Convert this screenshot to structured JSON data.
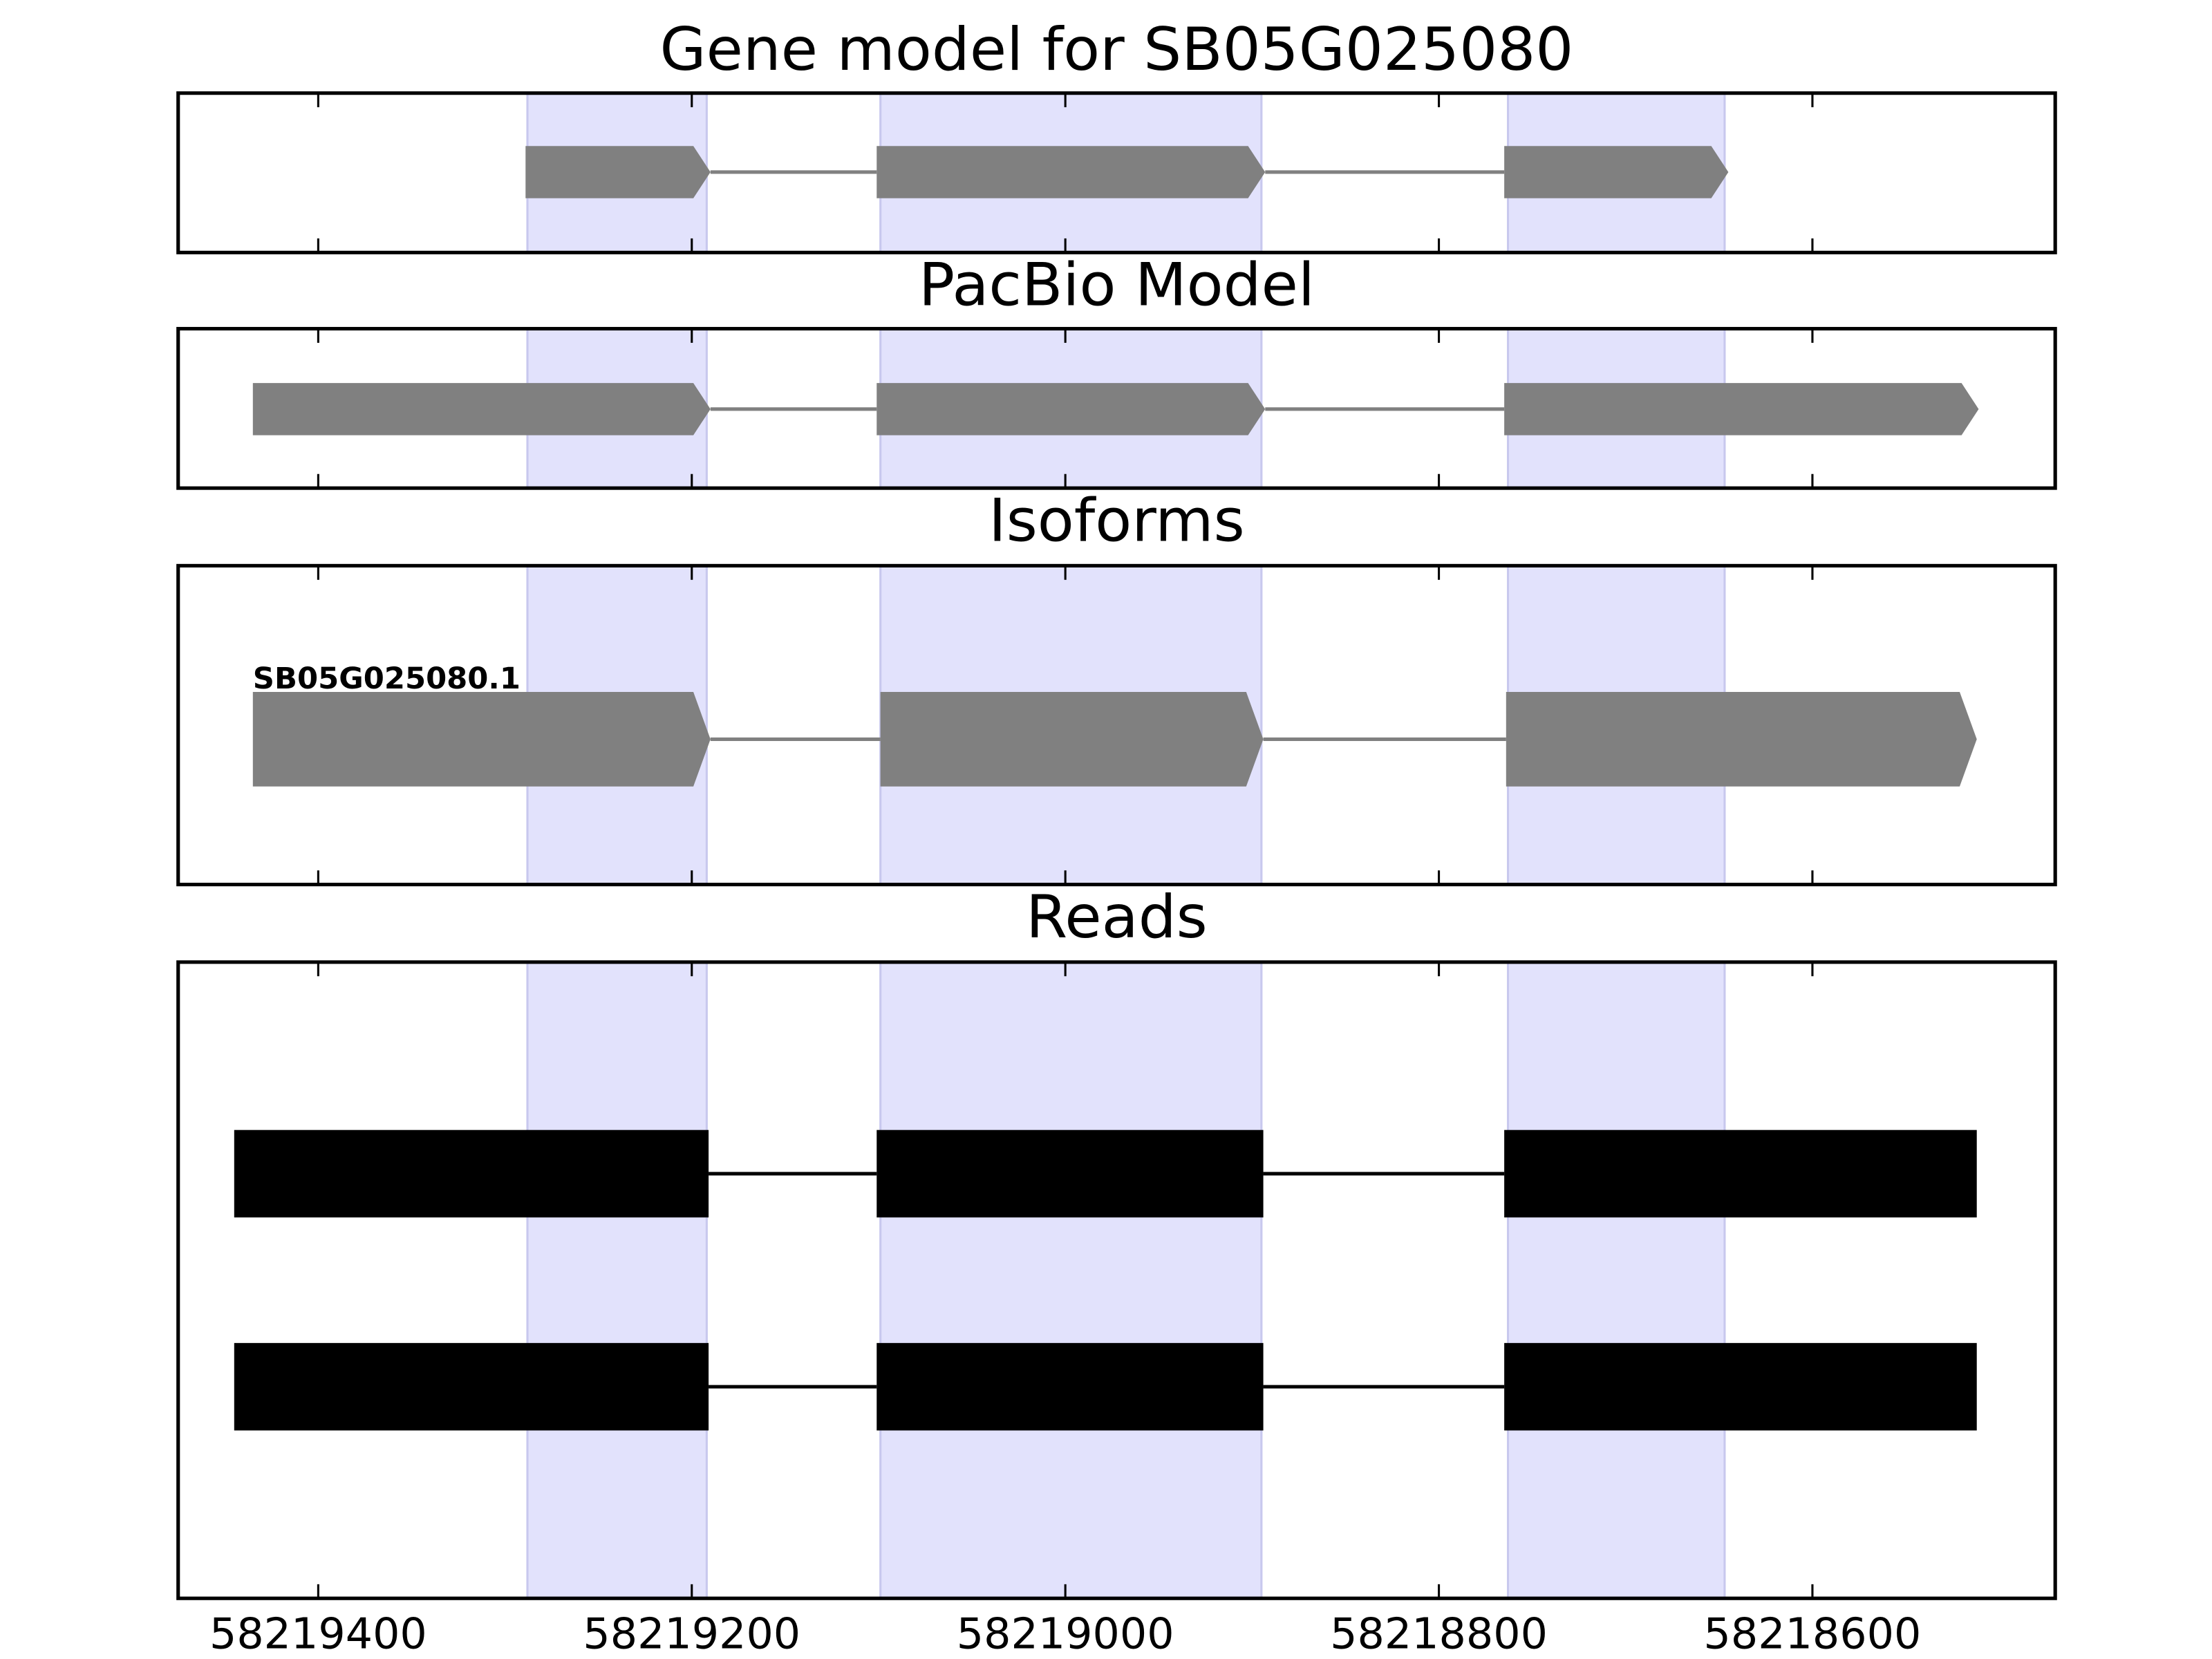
{
  "chart_data": [
    {
      "type": "gene-track",
      "title": "Gene model for SB05G025080",
      "shape": "arrow",
      "color": "#808080",
      "highlight_color": "#e2e2fc",
      "xlim": [
        58219475,
        58218470
      ],
      "xticks": [
        58219400,
        58219200,
        58219000,
        58218800,
        58218600
      ],
      "highlights": [
        [
          58219288,
          58219192
        ],
        [
          58219099,
          58218895
        ],
        [
          58218763,
          58218647
        ]
      ],
      "tracks": [
        {
          "exons": [
            [
              58219289,
              58219190
            ],
            [
              58219101,
              58218893
            ],
            [
              58218765,
              58218645
            ]
          ]
        }
      ]
    },
    {
      "type": "gene-track",
      "title": "PacBio Model",
      "shape": "arrow",
      "color": "#808080",
      "highlight_color": "#e2e2fc",
      "xlim": [
        58219475,
        58218470
      ],
      "xticks": [
        58219400,
        58219200,
        58219000,
        58218800,
        58218600
      ],
      "highlights": [
        [
          58219288,
          58219192
        ],
        [
          58219099,
          58218895
        ],
        [
          58218763,
          58218647
        ]
      ],
      "tracks": [
        {
          "exons": [
            [
              58219435,
              58219190
            ],
            [
              58219101,
              58218893
            ],
            [
              58218765,
              58218511
            ]
          ]
        }
      ]
    },
    {
      "type": "gene-track",
      "title": "Isoforms",
      "shape": "arrow",
      "color": "#808080",
      "highlight_color": "#e2e2fc",
      "xlim": [
        58219475,
        58218470
      ],
      "xticks": [
        58219400,
        58219200,
        58219000,
        58218800,
        58218600
      ],
      "highlights": [
        [
          58219288,
          58219192
        ],
        [
          58219099,
          58218895
        ],
        [
          58218763,
          58218647
        ]
      ],
      "tracks": [
        {
          "name": "SB05G025080.1",
          "exons": [
            [
              58219435,
              58219190
            ],
            [
              58219099,
              58218894
            ],
            [
              58218764,
              58218512
            ]
          ]
        }
      ]
    },
    {
      "type": "gene-track",
      "title": "Reads",
      "shape": "box",
      "color": "#000000",
      "highlight_color": "#e2e2fc",
      "xlim": [
        58219475,
        58218470
      ],
      "xticks": [
        58219400,
        58219200,
        58219000,
        58218800,
        58218600
      ],
      "highlights": [
        [
          58219288,
          58219192
        ],
        [
          58219099,
          58218895
        ],
        [
          58218763,
          58218647
        ]
      ],
      "tracks": [
        {
          "exons": [
            [
              58219445,
              58219191
            ],
            [
              58219101,
              58218894
            ],
            [
              58218765,
              58218512
            ]
          ]
        },
        {
          "exons": [
            [
              58219445,
              58219191
            ],
            [
              58219101,
              58218894
            ],
            [
              58218765,
              58218512
            ]
          ]
        }
      ]
    }
  ]
}
